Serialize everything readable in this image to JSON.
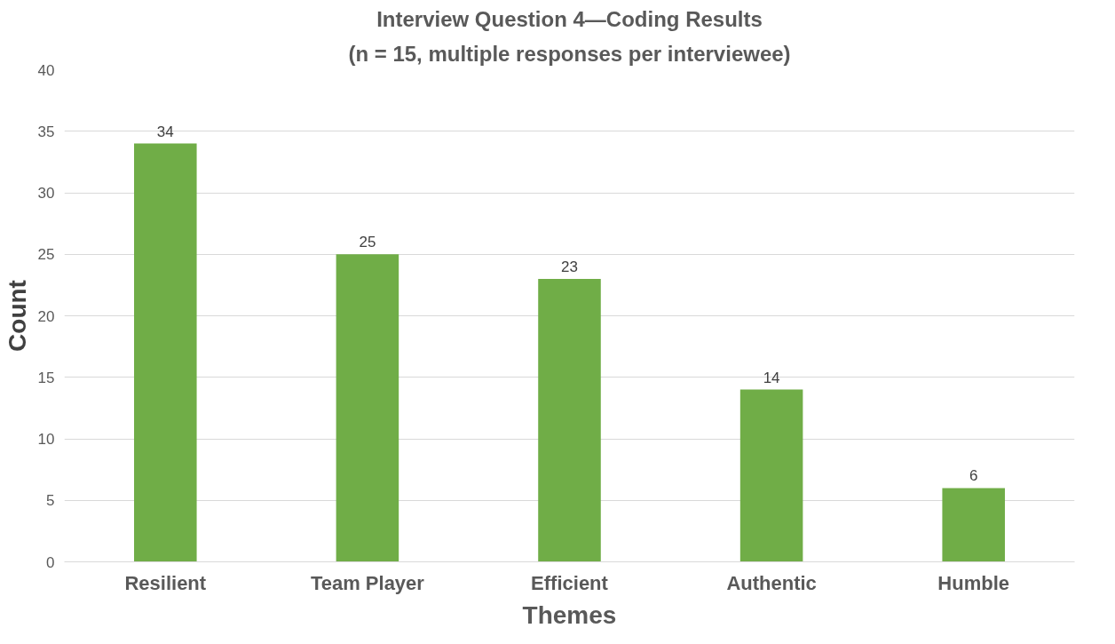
{
  "chart_data": {
    "type": "bar",
    "title": "Interview Question 4—Coding Results",
    "subtitle": "(n = 15, multiple responses per interviewee)",
    "xlabel": "Themes",
    "ylabel": "Count",
    "categories": [
      "Resilient",
      "Team Player",
      "Efficient",
      "Authentic",
      "Humble"
    ],
    "values": [
      34,
      25,
      23,
      14,
      6
    ],
    "color": "#70ad47",
    "ylim": [
      0,
      40
    ],
    "yticks": [
      0,
      5,
      10,
      15,
      20,
      25,
      30,
      35,
      40
    ],
    "grid": "y",
    "data_labels": true
  }
}
